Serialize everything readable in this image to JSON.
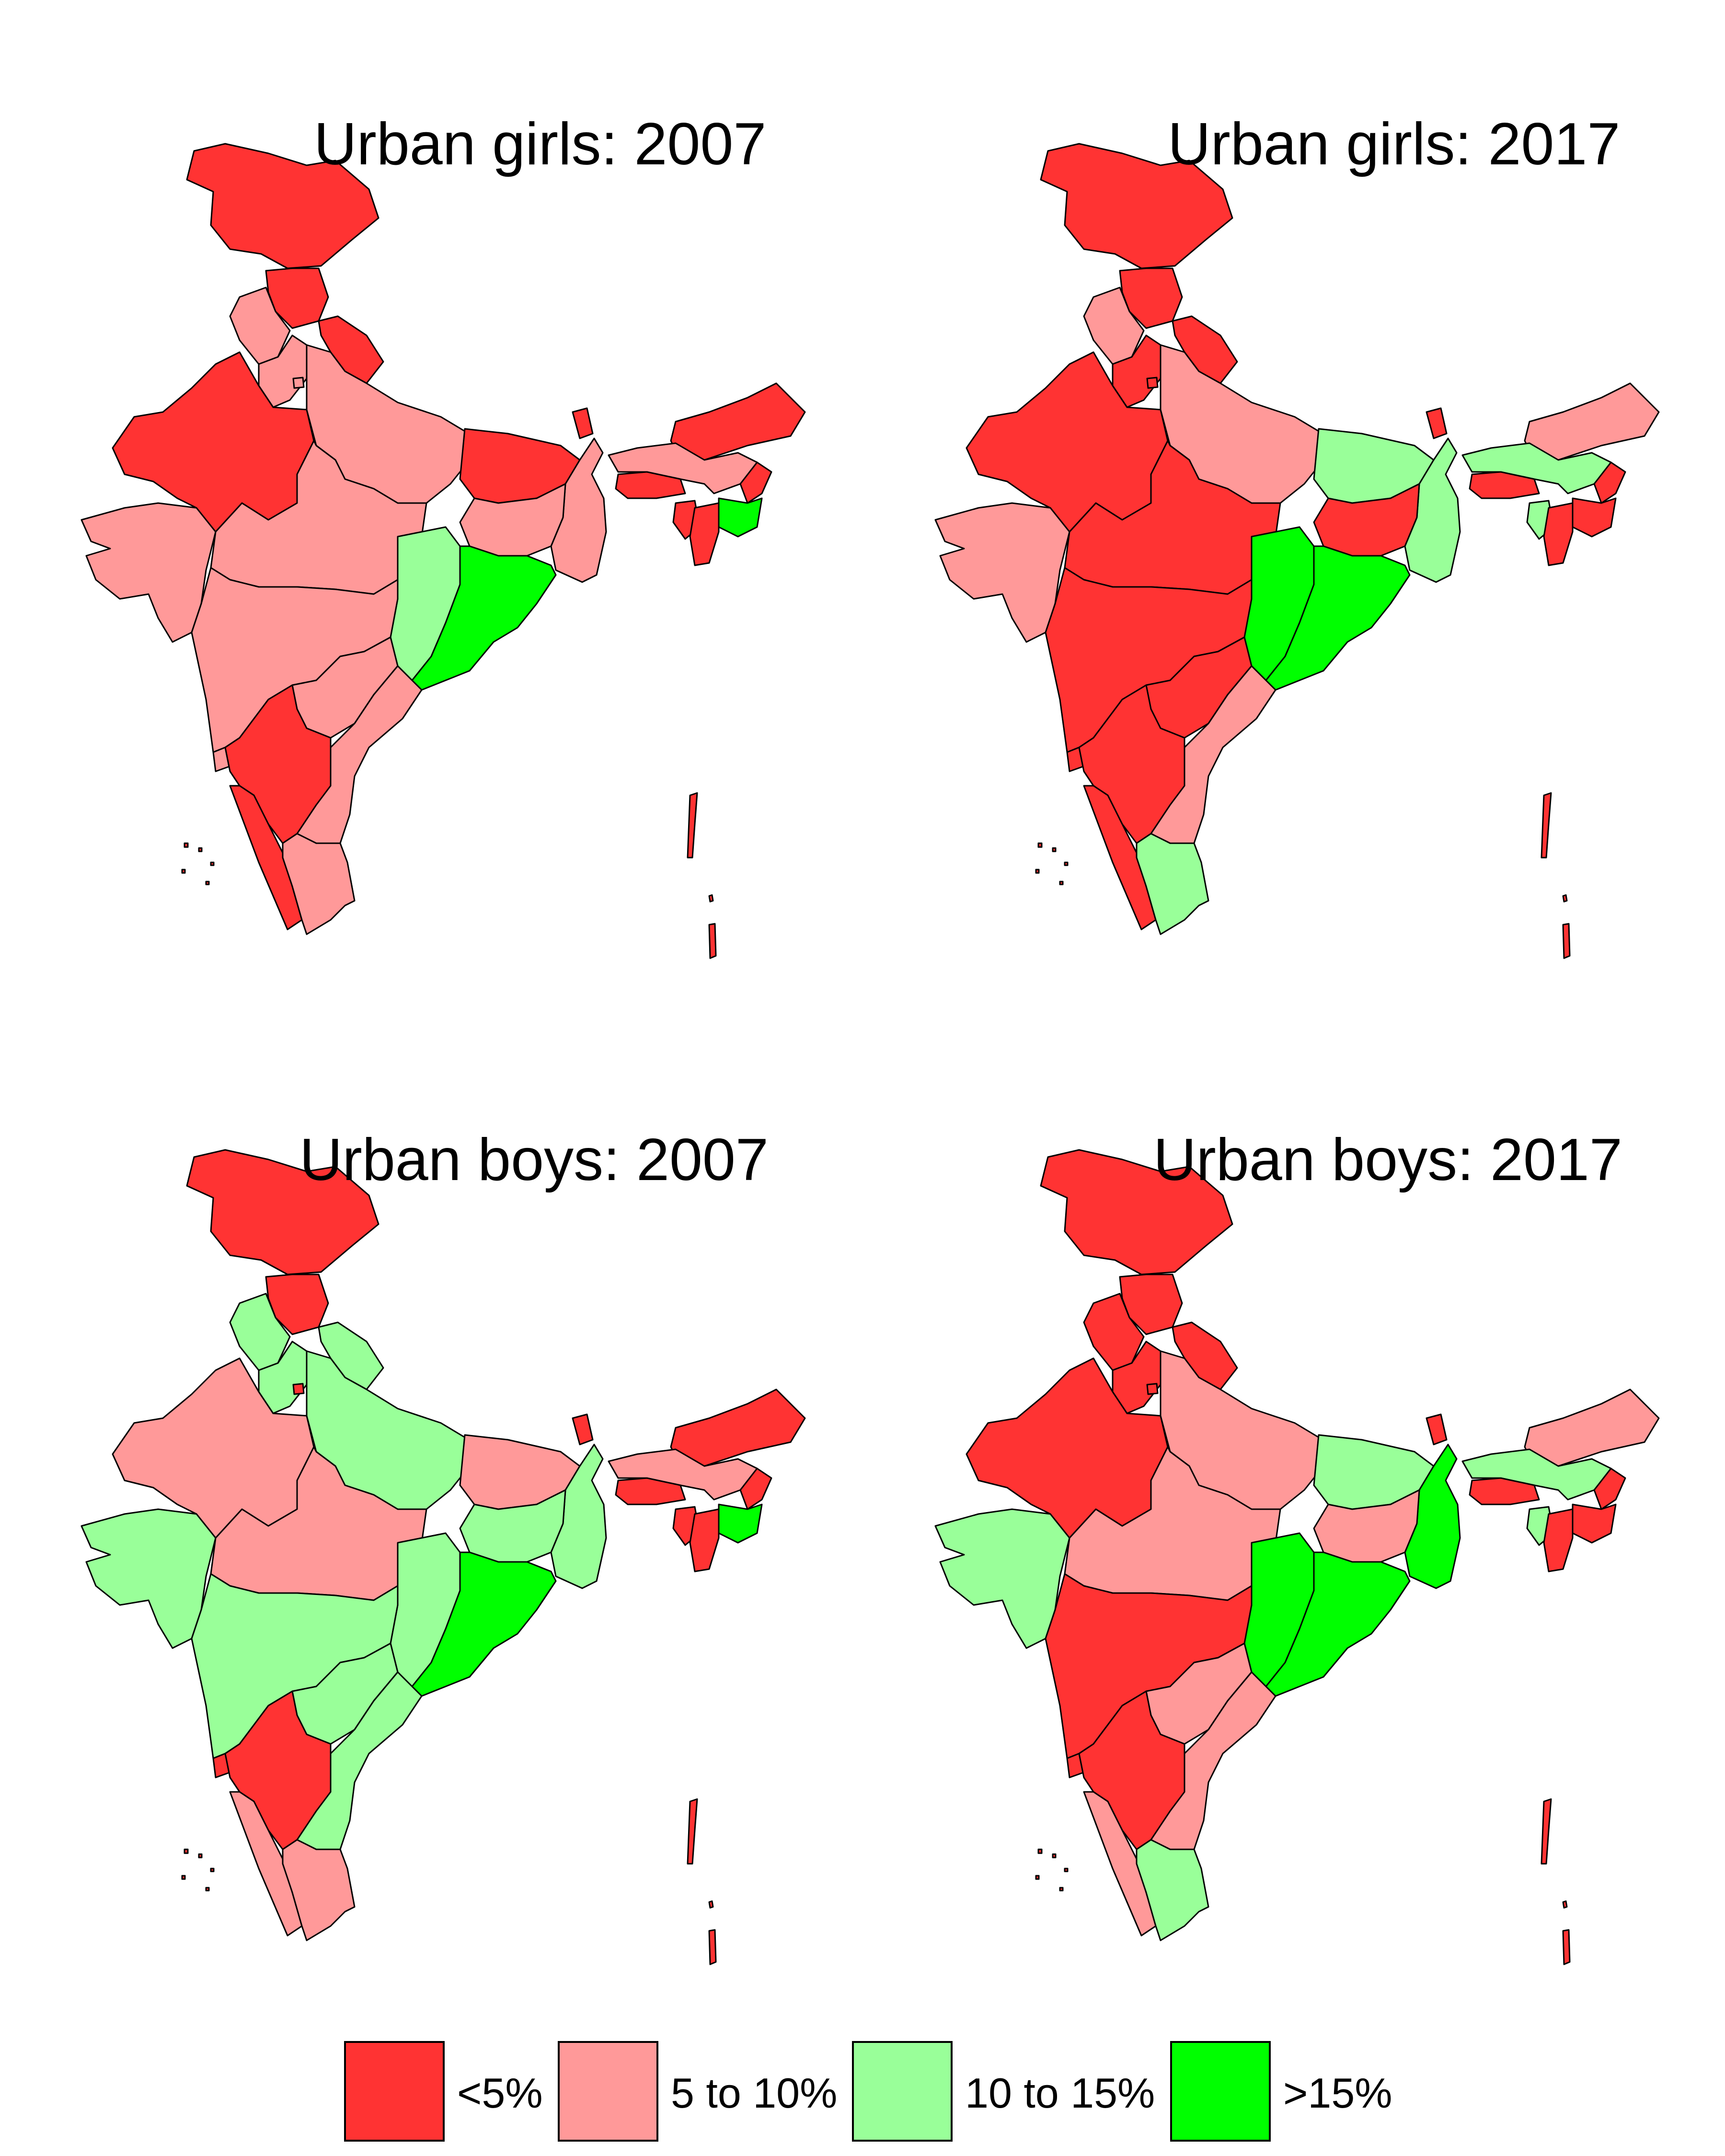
{
  "colors": {
    "lt5": "#ff3333",
    "5to10": "#ff9999",
    "10to15": "#99ff99",
    "gt15": "#00ff00",
    "border": "#000000"
  },
  "legend": [
    {
      "key": "lt5",
      "label": "<5%"
    },
    {
      "key": "5to10",
      "label": "5 to 10%"
    },
    {
      "key": "10to15",
      "label": "10 to 15%"
    },
    {
      "key": "gt15",
      "label": ">15%"
    }
  ],
  "panels": [
    {
      "title": "Urban girls: 2007",
      "regions": {
        "kashmir": "lt5",
        "himachal": "lt5",
        "uttarakhand": "lt5",
        "punjab": "5to10",
        "haryana": "5to10",
        "delhi": "5to10",
        "rajasthan": "lt5",
        "uttar_pradesh": "5to10",
        "bihar": "lt5",
        "sikkim": "lt5",
        "west_bengal": "5to10",
        "arunachal": "lt5",
        "assam": "5to10",
        "meghalaya": "lt5",
        "nagaland": "lt5",
        "manipur": "gt15",
        "tripura": "lt5",
        "mizoram": "lt5",
        "gujarat": "5to10",
        "madhya_pradesh": "5to10",
        "jharkhand": "5to10",
        "chhattisgarh": "10to15",
        "odisha": "gt15",
        "maharashtra": "5to10",
        "goa": "5to10",
        "telangana": "5to10",
        "andhra_pradesh": "5to10",
        "karnataka": "lt5",
        "kerala": "lt5",
        "tamil_nadu": "5to10",
        "andaman": "lt5",
        "lakshadweep": "lt5"
      }
    },
    {
      "title": "Urban girls: 2017",
      "regions": {
        "kashmir": "lt5",
        "himachal": "lt5",
        "uttarakhand": "lt5",
        "punjab": "5to10",
        "haryana": "lt5",
        "delhi": "lt5",
        "rajasthan": "lt5",
        "uttar_pradesh": "5to10",
        "bihar": "10to15",
        "sikkim": "lt5",
        "west_bengal": "10to15",
        "arunachal": "5to10",
        "assam": "10to15",
        "meghalaya": "lt5",
        "nagaland": "lt5",
        "manipur": "lt5",
        "tripura": "10to15",
        "mizoram": "lt5",
        "gujarat": "5to10",
        "madhya_pradesh": "lt5",
        "jharkhand": "lt5",
        "chhattisgarh": "gt15",
        "odisha": "gt15",
        "maharashtra": "lt5",
        "goa": "lt5",
        "telangana": "lt5",
        "andhra_pradesh": "5to10",
        "karnataka": "lt5",
        "kerala": "lt5",
        "tamil_nadu": "10to15",
        "andaman": "lt5",
        "lakshadweep": "lt5"
      }
    },
    {
      "title": "Urban boys: 2007",
      "regions": {
        "kashmir": "lt5",
        "himachal": "lt5",
        "uttarakhand": "10to15",
        "punjab": "10to15",
        "haryana": "10to15",
        "delhi": "lt5",
        "rajasthan": "5to10",
        "uttar_pradesh": "10to15",
        "bihar": "5to10",
        "sikkim": "lt5",
        "west_bengal": "10to15",
        "arunachal": "lt5",
        "assam": "5to10",
        "meghalaya": "lt5",
        "nagaland": "lt5",
        "manipur": "gt15",
        "tripura": "lt5",
        "mizoram": "lt5",
        "gujarat": "10to15",
        "madhya_pradesh": "5to10",
        "jharkhand": "10to15",
        "chhattisgarh": "10to15",
        "odisha": "gt15",
        "maharashtra": "10to15",
        "goa": "lt5",
        "telangana": "10to15",
        "andhra_pradesh": "10to15",
        "karnataka": "lt5",
        "kerala": "5to10",
        "tamil_nadu": "5to10",
        "andaman": "lt5",
        "lakshadweep": "lt5"
      }
    },
    {
      "title": "Urban boys: 2017",
      "regions": {
        "kashmir": "lt5",
        "himachal": "lt5",
        "uttarakhand": "lt5",
        "punjab": "lt5",
        "haryana": "lt5",
        "delhi": "lt5",
        "rajasthan": "lt5",
        "uttar_pradesh": "5to10",
        "bihar": "10to15",
        "sikkim": "lt5",
        "west_bengal": "gt15",
        "arunachal": "5to10",
        "assam": "10to15",
        "meghalaya": "lt5",
        "nagaland": "lt5",
        "manipur": "lt5",
        "tripura": "10to15",
        "mizoram": "lt5",
        "gujarat": "10to15",
        "madhya_pradesh": "5to10",
        "jharkhand": "5to10",
        "chhattisgarh": "gt15",
        "odisha": "gt15",
        "maharashtra": "lt5",
        "goa": "lt5",
        "telangana": "5to10",
        "andhra_pradesh": "5to10",
        "karnataka": "lt5",
        "kerala": "5to10",
        "tamil_nadu": "10to15",
        "andaman": "lt5",
        "lakshadweep": "lt5"
      }
    }
  ]
}
